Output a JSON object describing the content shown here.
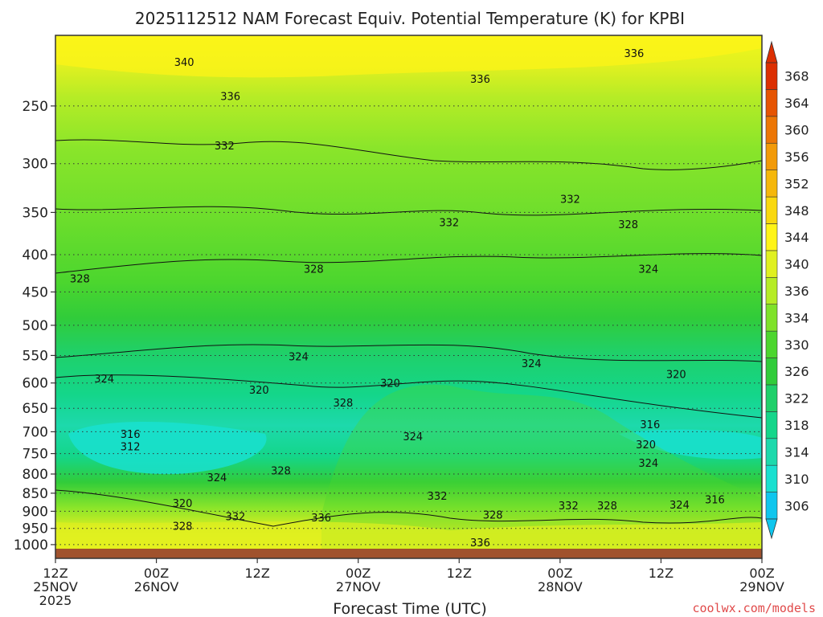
{
  "chart_data": {
    "type": "heatmap",
    "title": "2025112512 NAM Forecast Equiv. Potential Temperature (K) for KPBI",
    "xlabel": "Forecast Time (UTC)",
    "ylabel": "",
    "credit": "coolwx.com/models",
    "x_ticks": [
      {
        "hours": 0,
        "line1": "12Z",
        "line2": "25NOV",
        "line3": "2025"
      },
      {
        "hours": 12,
        "line1": "00Z",
        "line2": "26NOV",
        "line3": ""
      },
      {
        "hours": 24,
        "line1": "12Z",
        "line2": "",
        "line3": ""
      },
      {
        "hours": 36,
        "line1": "00Z",
        "line2": "27NOV",
        "line3": ""
      },
      {
        "hours": 48,
        "line1": "12Z",
        "line2": "",
        "line3": ""
      },
      {
        "hours": 60,
        "line1": "00Z",
        "line2": "28NOV",
        "line3": ""
      },
      {
        "hours": 72,
        "line1": "12Z",
        "line2": "",
        "line3": ""
      },
      {
        "hours": 84,
        "line1": "00Z",
        "line2": "29NOV",
        "line3": ""
      }
    ],
    "y_ticks": [
      250,
      300,
      350,
      400,
      450,
      500,
      550,
      600,
      650,
      700,
      750,
      800,
      850,
      900,
      950,
      1000
    ],
    "y_range": [
      200,
      1013
    ],
    "y_scale": "log-pressure",
    "x_range": [
      0,
      84
    ],
    "colorbar": {
      "levels": [
        306,
        310,
        314,
        318,
        322,
        326,
        330,
        334,
        336,
        340,
        344,
        348,
        352,
        356,
        360,
        364,
        368
      ],
      "colors": [
        "#0fc6ee",
        "#19e0d0",
        "#1dd9ac",
        "#14d68a",
        "#1fd06a",
        "#31cc3a",
        "#4cd62e",
        "#7fe22a",
        "#b6ec26",
        "#e0f020",
        "#fff417",
        "#f9d80f",
        "#f5b70b",
        "#f29a08",
        "#ec7605",
        "#e65403",
        "#dc2f02"
      ]
    },
    "contour_labels": [
      {
        "text": "340",
        "h": 15.3,
        "p": 218
      },
      {
        "text": "336",
        "h": 20.8,
        "p": 243
      },
      {
        "text": "336",
        "h": 50.5,
        "p": 230
      },
      {
        "text": "336",
        "h": 68.8,
        "p": 212
      },
      {
        "text": "332",
        "h": 20.1,
        "p": 284
      },
      {
        "text": "332",
        "h": 46.8,
        "p": 362
      },
      {
        "text": "332",
        "h": 61.2,
        "p": 336
      },
      {
        "text": "328",
        "h": 68.1,
        "p": 364
      },
      {
        "text": "328",
        "h": 2.9,
        "p": 432
      },
      {
        "text": "328",
        "h": 30.7,
        "p": 419
      },
      {
        "text": "324",
        "h": 70.5,
        "p": 419
      },
      {
        "text": "324",
        "h": 28.9,
        "p": 553
      },
      {
        "text": "324",
        "h": 5.8,
        "p": 593
      },
      {
        "text": "324",
        "h": 56.6,
        "p": 565
      },
      {
        "text": "320",
        "h": 24.2,
        "p": 614
      },
      {
        "text": "320",
        "h": 39.8,
        "p": 601
      },
      {
        "text": "320",
        "h": 73.8,
        "p": 585
      },
      {
        "text": "328",
        "h": 34.2,
        "p": 640
      },
      {
        "text": "316",
        "h": 8.9,
        "p": 706
      },
      {
        "text": "312",
        "h": 8.9,
        "p": 735
      },
      {
        "text": "316",
        "h": 70.7,
        "p": 685
      },
      {
        "text": "324",
        "h": 42.5,
        "p": 712
      },
      {
        "text": "320",
        "h": 70.2,
        "p": 730
      },
      {
        "text": "324",
        "h": 19.2,
        "p": 810
      },
      {
        "text": "328",
        "h": 26.8,
        "p": 793
      },
      {
        "text": "324",
        "h": 70.5,
        "p": 774
      },
      {
        "text": "320",
        "h": 15.1,
        "p": 879
      },
      {
        "text": "332",
        "h": 45.4,
        "p": 859
      },
      {
        "text": "332",
        "h": 61.0,
        "p": 885
      },
      {
        "text": "332",
        "h": 21.4,
        "p": 916
      },
      {
        "text": "336",
        "h": 31.6,
        "p": 920
      },
      {
        "text": "328",
        "h": 15.1,
        "p": 945
      },
      {
        "text": "328",
        "h": 52.0,
        "p": 912
      },
      {
        "text": "328",
        "h": 65.6,
        "p": 885
      },
      {
        "text": "324",
        "h": 74.2,
        "p": 883
      },
      {
        "text": "316",
        "h": 78.4,
        "p": 869
      },
      {
        "text": "336",
        "h": 50.5,
        "p": 995
      }
    ]
  }
}
